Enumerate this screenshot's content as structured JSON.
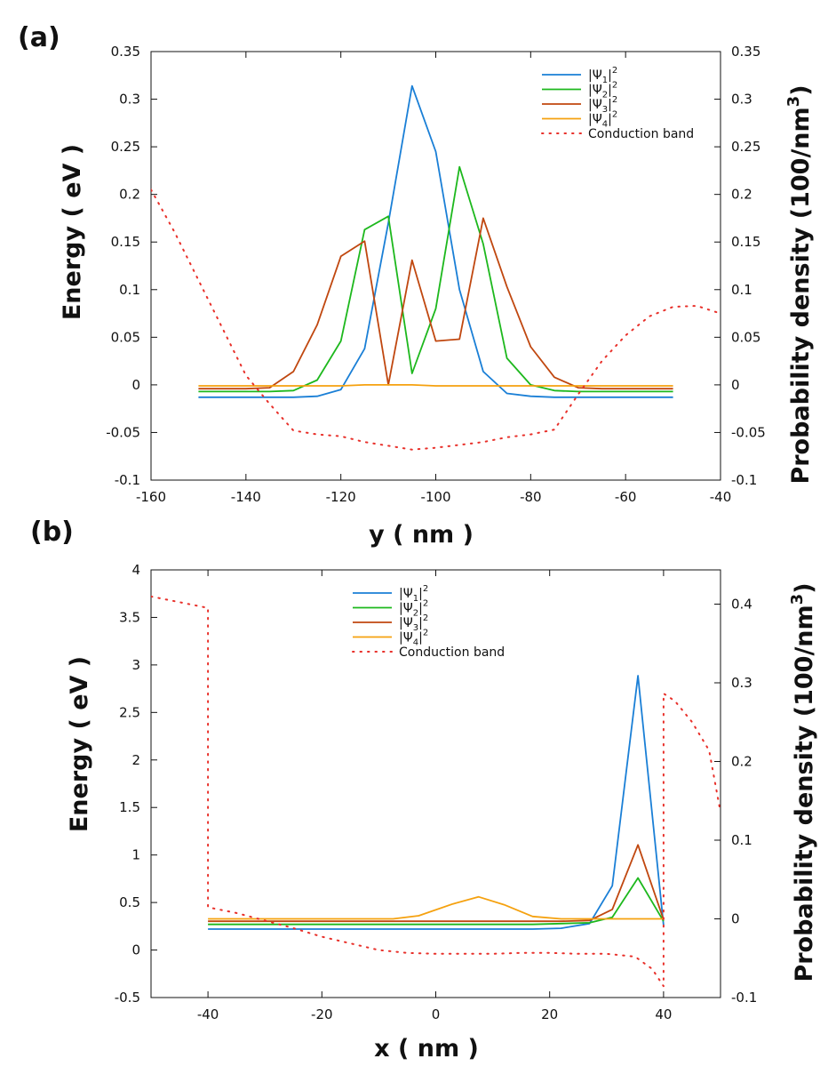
{
  "chart_data": [
    {
      "panel_label": "(a)",
      "type": "line",
      "xlabel": "y ( nm )",
      "ylabel": "Energy ( eV )",
      "y2label": "Probability density (100/nm",
      "y2label_sup": "3",
      "y2label_end": ")",
      "xlim": [
        -160,
        -40
      ],
      "ylim": [
        -0.1,
        0.35
      ],
      "y2lim": [
        -0.1,
        0.35
      ],
      "xticks": [
        -160,
        -140,
        -120,
        -100,
        -80,
        -60,
        -40
      ],
      "yticks": [
        -0.1,
        -0.05,
        0,
        0.05,
        0.1,
        0.15,
        0.2,
        0.25,
        0.3,
        0.35
      ],
      "yticklabels": [
        "-0.1",
        "-0.05",
        "0",
        "0.05",
        "0.1",
        "0.15",
        "0.2",
        "0.25",
        "0.3",
        "0.35"
      ],
      "y2ticks": [
        -0.1,
        -0.05,
        0,
        0.05,
        0.1,
        0.15,
        0.2,
        0.25,
        0.3,
        0.35
      ],
      "y2ticklabels": [
        "-0.1",
        "-0.05",
        "0",
        "0.05",
        "0.1",
        "0.15",
        "0.2",
        "0.25",
        "0.3",
        "0.35"
      ],
      "legend_position": "top-right",
      "grid": false,
      "series": [
        {
          "name": "|Ψ1|2",
          "name_base": "Ψ",
          "name_sub": "1",
          "name_sup": "2",
          "color": "#1a7fd6",
          "axis": "y2",
          "style": "solid",
          "x": [
            -150,
            -145,
            -140,
            -135,
            -130,
            -125,
            -120,
            -115,
            -110,
            -105,
            -100,
            -95,
            -90,
            -85,
            -80,
            -75,
            -70,
            -65,
            -60,
            -55,
            -50
          ],
          "y": [
            -0.013,
            -0.013,
            -0.013,
            -0.013,
            -0.013,
            -0.012,
            -0.005,
            0.038,
            0.17,
            0.314,
            0.245,
            0.1,
            0.014,
            -0.009,
            -0.012,
            -0.013,
            -0.013,
            -0.013,
            -0.013,
            -0.013,
            -0.013
          ]
        },
        {
          "name": "|Ψ2|2",
          "name_base": "Ψ",
          "name_sub": "2",
          "name_sup": "2",
          "color": "#1db81d",
          "axis": "y2",
          "style": "solid",
          "x": [
            -150,
            -145,
            -140,
            -135,
            -130,
            -125,
            -120,
            -115,
            -110,
            -105,
            -100,
            -95,
            -90,
            -85,
            -80,
            -75,
            -70,
            -65,
            -60,
            -55,
            -50
          ],
          "y": [
            -0.007,
            -0.007,
            -0.007,
            -0.007,
            -0.006,
            0.005,
            0.046,
            0.163,
            0.177,
            0.012,
            0.08,
            0.229,
            0.148,
            0.028,
            0.0,
            -0.006,
            -0.007,
            -0.007,
            -0.007,
            -0.007,
            -0.007
          ]
        },
        {
          "name": "|Ψ3|2",
          "name_base": "Ψ",
          "name_sub": "3",
          "name_sup": "2",
          "color": "#c0470f",
          "axis": "y2",
          "style": "solid",
          "x": [
            -150,
            -145,
            -140,
            -135,
            -130,
            -125,
            -120,
            -115,
            -110,
            -105,
            -100,
            -95,
            -90,
            -85,
            -80,
            -75,
            -70,
            -65,
            -60,
            -55,
            -50
          ],
          "y": [
            -0.004,
            -0.004,
            -0.004,
            -0.003,
            0.014,
            0.063,
            0.135,
            0.151,
            0.0,
            0.131,
            0.046,
            0.048,
            0.175,
            0.103,
            0.04,
            0.008,
            -0.003,
            -0.004,
            -0.004,
            -0.004,
            -0.004
          ]
        },
        {
          "name": "|Ψ4|2",
          "name_base": "Ψ",
          "name_sub": "4",
          "name_sup": "2",
          "color": "#f5a10f",
          "axis": "y2",
          "style": "solid",
          "x": [
            -150,
            -140,
            -130,
            -120,
            -115,
            -110,
            -105,
            -100,
            -95,
            -90,
            -80,
            -70,
            -60,
            -50
          ],
          "y": [
            -0.001,
            -0.001,
            -0.001,
            -0.001,
            0.0,
            0.0,
            0.0,
            -0.001,
            -0.001,
            -0.001,
            -0.001,
            -0.001,
            -0.001,
            -0.001
          ]
        },
        {
          "name": "Conduction band",
          "color": "#e8302a",
          "axis": "y",
          "style": "dotted",
          "x": [
            -160,
            -155,
            -150,
            -145,
            -140,
            -135,
            -130,
            -125,
            -120,
            -115,
            -110,
            -105,
            -100,
            -95,
            -90,
            -85,
            -80,
            -75,
            -70,
            -65,
            -60,
            -55,
            -50,
            -45,
            -40
          ],
          "y": [
            0.205,
            0.16,
            0.11,
            0.06,
            0.01,
            -0.02,
            -0.048,
            -0.052,
            -0.054,
            -0.06,
            -0.064,
            -0.068,
            -0.066,
            -0.063,
            -0.06,
            -0.055,
            -0.052,
            -0.047,
            -0.01,
            0.025,
            0.052,
            0.072,
            0.082,
            0.083,
            0.075
          ]
        }
      ]
    },
    {
      "panel_label": "(b)",
      "type": "line",
      "xlabel": "x ( nm )",
      "ylabel": "Energy ( eV )",
      "y2label": "Probability density (100/nm",
      "y2label_sup": "3",
      "y2label_end": ")",
      "xlim": [
        -50,
        50
      ],
      "ylim": [
        -0.5,
        4
      ],
      "y2lim": [
        -0.1,
        0.4435
      ],
      "xticks": [
        -40,
        -20,
        0,
        20,
        40
      ],
      "yticks": [
        -0.5,
        0,
        0.5,
        1,
        1.5,
        2,
        2.5,
        3,
        3.5,
        4
      ],
      "yticklabels": [
        "-0.5",
        "0",
        "0.5",
        "1",
        "1.5",
        "2",
        "2.5",
        "3",
        "3.5",
        "4"
      ],
      "y2ticks": [
        -0.1,
        0,
        0.1,
        0.2,
        0.3,
        0.4
      ],
      "y2ticklabels": [
        "-0.1",
        "0",
        "0.1",
        "0.2",
        "0.3",
        "0.4"
      ],
      "legend_position": "top-center",
      "grid": false,
      "series": [
        {
          "name": "|Ψ1|2",
          "name_base": "Ψ",
          "name_sub": "1",
          "name_sup": "2",
          "color": "#1a7fd6",
          "axis": "y2",
          "style": "solid",
          "x": [
            -40,
            -30,
            -20,
            -10,
            0,
            10,
            17,
            22,
            27,
            31,
            35.5,
            40
          ],
          "y": [
            -0.013,
            -0.013,
            -0.013,
            -0.013,
            -0.013,
            -0.013,
            -0.013,
            -0.012,
            -0.006,
            0.042,
            0.309,
            -0.008
          ]
        },
        {
          "name": "|Ψ2|2",
          "name_base": "Ψ",
          "name_sub": "2",
          "name_sup": "2",
          "color": "#1db81d",
          "axis": "y2",
          "style": "solid",
          "x": [
            -40,
            -30,
            -20,
            -10,
            0,
            10,
            17,
            22,
            27,
            31,
            35.5,
            40
          ],
          "y": [
            -0.007,
            -0.007,
            -0.007,
            -0.007,
            -0.007,
            -0.007,
            -0.007,
            -0.006,
            -0.005,
            0.002,
            0.052,
            -0.003
          ]
        },
        {
          "name": "|Ψ3|2",
          "name_base": "Ψ",
          "name_sub": "3",
          "name_sup": "2",
          "color": "#c0470f",
          "axis": "y2",
          "style": "solid",
          "x": [
            -40,
            -30,
            -20,
            -10,
            0,
            10,
            17,
            22,
            27,
            31,
            35.5,
            40
          ],
          "y": [
            -0.003,
            -0.003,
            -0.003,
            -0.003,
            -0.003,
            -0.003,
            -0.003,
            -0.003,
            -0.002,
            0.012,
            0.094,
            -0.001
          ]
        },
        {
          "name": "|Ψ4|2",
          "name_base": "Ψ",
          "name_sub": "4",
          "name_sup": "2",
          "color": "#f5a10f",
          "axis": "y2",
          "style": "solid",
          "x": [
            -40,
            -30,
            -20,
            -10,
            -7.5,
            -3,
            3,
            7.5,
            12,
            17,
            22,
            27,
            31,
            35.5,
            40
          ],
          "y": [
            0.0,
            0.0,
            0.0,
            0.0,
            0.0,
            0.004,
            0.019,
            0.028,
            0.018,
            0.003,
            0.0,
            0.0,
            0.0,
            0.0,
            0.0
          ]
        },
        {
          "name": "Conduction band",
          "color": "#e8302a",
          "axis": "y",
          "style": "dotted",
          "x": [
            -50,
            -45,
            -40,
            -40,
            -35,
            -30,
            -25,
            -20,
            -15,
            -10,
            -5,
            0,
            5,
            10,
            15,
            20,
            25,
            30,
            35,
            38,
            40,
            40,
            42,
            45,
            48,
            50
          ],
          "y": [
            3.72,
            3.66,
            3.6,
            0.45,
            0.39,
            0.31,
            0.23,
            0.14,
            0.07,
            0.0,
            -0.03,
            -0.04,
            -0.04,
            -0.04,
            -0.03,
            -0.03,
            -0.04,
            -0.04,
            -0.07,
            -0.2,
            -0.38,
            2.7,
            2.62,
            2.4,
            2.1,
            1.45
          ]
        }
      ]
    }
  ]
}
